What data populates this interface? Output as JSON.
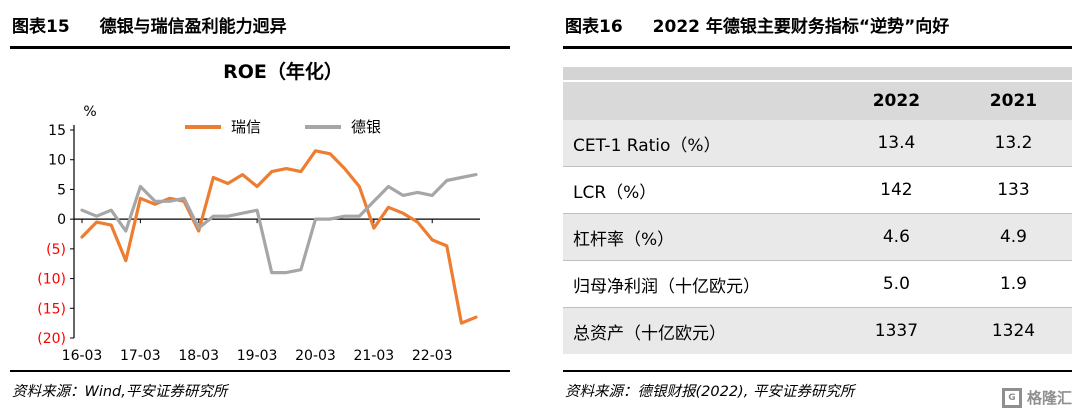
{
  "panels": {
    "left": {
      "header_tag": "图表15",
      "header_title": "德银与瑞信盈利能力迥异",
      "source": "资料来源：Wind,平安证券研究所"
    },
    "right": {
      "header_tag": "图表16",
      "header_title": "2022 年德银主要财务指标“逆势”向好",
      "source": "资料来源：德银财报(2022), 平安证券研究所"
    }
  },
  "chart_data": [
    {
      "type": "line",
      "title": "ROE（年化）",
      "unit_label": "%",
      "ylim": [
        -20,
        15
      ],
      "y_tick_step": 5,
      "negative_tick_color": "#FF0000",
      "grid": false,
      "legend_position": "top",
      "x_tick_labels": [
        "16-03",
        "17-03",
        "18-03",
        "19-03",
        "20-03",
        "21-03",
        "22-03"
      ],
      "x_tick_indices": [
        0,
        4,
        8,
        12,
        16,
        20,
        24
      ],
      "series": [
        {
          "name": "瑞信",
          "color": "#ED7D31",
          "values": [
            -3,
            -0.5,
            -1,
            -7,
            3.5,
            2.5,
            3.5,
            3,
            -2,
            7,
            6,
            7.5,
            5.5,
            8,
            8.5,
            8,
            11.5,
            11,
            8.5,
            5.5,
            -1.5,
            2,
            1,
            -0.5,
            -3.5,
            -4.5,
            -17.5,
            -16.5
          ]
        },
        {
          "name": "德银",
          "color": "#A6A6A6",
          "values": [
            1.5,
            0.5,
            1.5,
            -2,
            5.5,
            3,
            3,
            3.5,
            -1.5,
            0.5,
            0.5,
            1,
            1.5,
            -9,
            -9,
            -8.5,
            0,
            0,
            0.5,
            0.5,
            3,
            5.5,
            4,
            4.5,
            4,
            6.5,
            7,
            7.5
          ]
        }
      ]
    },
    {
      "type": "table",
      "title": "2022 年德银主要财务指标“逆势”向好",
      "columns": [
        "",
        "2022",
        "2021"
      ],
      "rows": [
        [
          "CET-1 Ratio（%）",
          "13.4",
          "13.2"
        ],
        [
          "LCR（%）",
          "142",
          "133"
        ],
        [
          "杠杆率（%）",
          "4.6",
          "4.9"
        ],
        [
          "归母净利润（十亿欧元）",
          "5.0",
          "1.9"
        ],
        [
          "总资产（十亿欧元）",
          "1337",
          "1324"
        ]
      ]
    }
  ],
  "colors": {
    "credit_suisse_line": "#ED7D31",
    "deutsche_bank_line": "#A6A6A6",
    "negative_axis_label": "#FF0000",
    "table_header_bg": "#D9D9D9"
  },
  "watermark": {
    "text": "格隆汇"
  }
}
